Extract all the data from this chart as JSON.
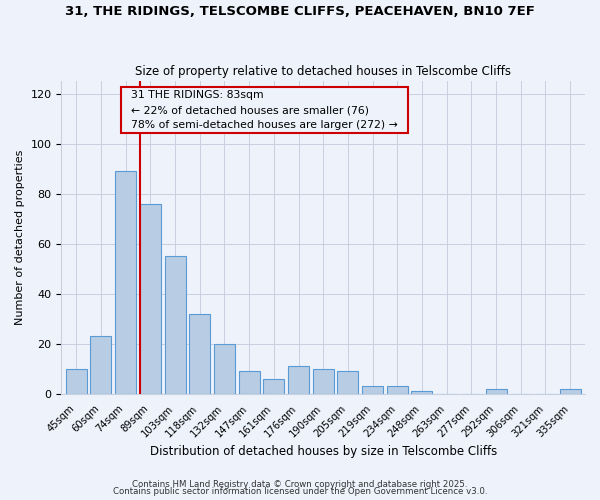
{
  "title1": "31, THE RIDINGS, TELSCOMBE CLIFFS, PEACEHAVEN, BN10 7EF",
  "title2": "Size of property relative to detached houses in Telscombe Cliffs",
  "xlabel": "Distribution of detached houses by size in Telscombe Cliffs",
  "ylabel": "Number of detached properties",
  "bar_labels": [
    "45sqm",
    "60sqm",
    "74sqm",
    "89sqm",
    "103sqm",
    "118sqm",
    "132sqm",
    "147sqm",
    "161sqm",
    "176sqm",
    "190sqm",
    "205sqm",
    "219sqm",
    "234sqm",
    "248sqm",
    "263sqm",
    "277sqm",
    "292sqm",
    "306sqm",
    "321sqm",
    "335sqm"
  ],
  "bar_values": [
    10,
    23,
    89,
    76,
    55,
    32,
    20,
    9,
    6,
    11,
    10,
    9,
    3,
    3,
    1,
    0,
    0,
    2,
    0,
    0,
    2
  ],
  "bar_color": "#b8cce4",
  "bar_edge_color": "#5b9bd5",
  "vline_color": "#cc0000",
  "annotation_title": "31 THE RIDINGS: 83sqm",
  "annotation_line1": "← 22% of detached houses are smaller (76)",
  "annotation_line2": "78% of semi-detached houses are larger (272) →",
  "annotation_box_color": "#cc0000",
  "ylim": [
    0,
    125
  ],
  "yticks": [
    0,
    20,
    40,
    60,
    80,
    100,
    120
  ],
  "footnote1": "Contains HM Land Registry data © Crown copyright and database right 2025.",
  "footnote2": "Contains public sector information licensed under the Open Government Licence v3.0.",
  "bg_color": "#eef2fb",
  "grid_color": "#c8d0e0"
}
